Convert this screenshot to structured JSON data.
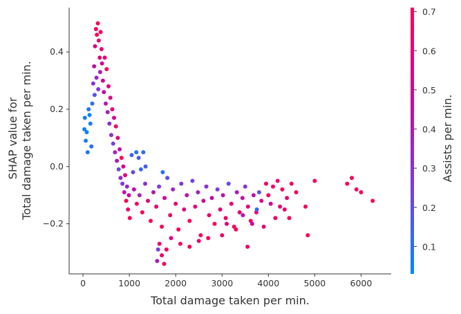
{
  "chart_data": {
    "type": "scatter",
    "xlabel": "Total damage taken per min.",
    "ylabel_line1": "SHAP value for",
    "ylabel_line2": "Total damage taken per min.",
    "colorbar_label": "Assists per min.",
    "xlim": [
      -300,
      6650
    ],
    "ylim": [
      -0.375,
      0.555
    ],
    "xticks": [
      0,
      1000,
      2000,
      3000,
      4000,
      5000,
      6000
    ],
    "yticks": [
      -0.2,
      0.0,
      0.2,
      0.4
    ],
    "xtick_labels": [
      "0",
      "1000",
      "2000",
      "3000",
      "4000",
      "5000",
      "6000"
    ],
    "ytick_labels": [
      "−0.2",
      "0.0",
      "0.2",
      "0.4"
    ],
    "color_scale": {
      "range": [
        0.03,
        0.71
      ],
      "ticks": [
        0.1,
        0.2,
        0.3,
        0.4,
        0.5,
        0.6,
        0.7
      ],
      "tick_labels": [
        "0.1",
        "0.2",
        "0.3",
        "0.4",
        "0.5",
        "0.6",
        "0.7"
      ],
      "colors": [
        "#008afb",
        "#7b3be2",
        "#c9079d",
        "#ff0052"
      ]
    },
    "points": [
      [
        40,
        0.17,
        0.08
      ],
      [
        80,
        0.12,
        0.05
      ],
      [
        120,
        0.2,
        0.1
      ],
      [
        160,
        0.15,
        0.06
      ],
      [
        60,
        0.09,
        0.07
      ],
      [
        200,
        0.22,
        0.12
      ],
      [
        100,
        0.05,
        0.09
      ],
      [
        140,
        0.18,
        0.04
      ],
      [
        30,
        0.13,
        0.06
      ],
      [
        180,
        0.07,
        0.11
      ],
      [
        220,
        0.29,
        0.3
      ],
      [
        240,
        0.35,
        0.45
      ],
      [
        260,
        0.42,
        0.55
      ],
      [
        280,
        0.48,
        0.65
      ],
      [
        300,
        0.46,
        0.7
      ],
      [
        320,
        0.5,
        0.68
      ],
      [
        340,
        0.44,
        0.62
      ],
      [
        360,
        0.38,
        0.58
      ],
      [
        380,
        0.47,
        0.66
      ],
      [
        400,
        0.41,
        0.6
      ],
      [
        250,
        0.25,
        0.2
      ],
      [
        290,
        0.31,
        0.35
      ],
      [
        330,
        0.27,
        0.28
      ],
      [
        370,
        0.33,
        0.4
      ],
      [
        410,
        0.36,
        0.5
      ],
      [
        430,
        0.3,
        0.55
      ],
      [
        450,
        0.26,
        0.48
      ],
      [
        470,
        0.38,
        0.64
      ],
      [
        490,
        0.22,
        0.42
      ],
      [
        510,
        0.34,
        0.69
      ],
      [
        530,
        0.19,
        0.38
      ],
      [
        550,
        0.28,
        0.6
      ],
      [
        570,
        0.15,
        0.33
      ],
      [
        590,
        0.24,
        0.56
      ],
      [
        610,
        0.11,
        0.3
      ],
      [
        630,
        0.2,
        0.62
      ],
      [
        650,
        0.08,
        0.25
      ],
      [
        670,
        0.17,
        0.52
      ],
      [
        690,
        0.05,
        0.36
      ],
      [
        710,
        0.14,
        0.66
      ],
      [
        730,
        0.02,
        0.4
      ],
      [
        750,
        0.1,
        0.58
      ],
      [
        770,
        -0.01,
        0.22
      ],
      [
        790,
        0.06,
        0.47
      ],
      [
        810,
        -0.04,
        0.35
      ],
      [
        830,
        0.03,
        0.69
      ],
      [
        850,
        -0.06,
        0.28
      ],
      [
        870,
        0.0,
        0.55
      ],
      [
        890,
        -0.09,
        0.44
      ],
      [
        910,
        -0.03,
        0.61
      ],
      [
        930,
        -0.12,
        0.68
      ],
      [
        950,
        -0.07,
        0.32
      ],
      [
        970,
        -0.15,
        0.63
      ],
      [
        990,
        -0.1,
        0.5
      ],
      [
        1010,
        -0.18,
        0.7
      ],
      [
        1050,
        0.04,
        0.15
      ],
      [
        1150,
        0.05,
        0.1
      ],
      [
        1080,
        -0.02,
        0.22
      ],
      [
        1200,
        0.03,
        0.18
      ],
      [
        1250,
        -0.01,
        0.12
      ],
      [
        1100,
        -0.08,
        0.45
      ],
      [
        1160,
        -0.13,
        0.66
      ],
      [
        1220,
        -0.1,
        0.38
      ],
      [
        1280,
        -0.16,
        0.7
      ],
      [
        1340,
        -0.06,
        0.3
      ],
      [
        1400,
        -0.12,
        0.58
      ],
      [
        1460,
        -0.19,
        0.67
      ],
      [
        1520,
        -0.09,
        0.41
      ],
      [
        1580,
        -0.14,
        0.63
      ],
      [
        1640,
        -0.07,
        0.26
      ],
      [
        1700,
        -0.21,
        0.69
      ],
      [
        1760,
        -0.11,
        0.52
      ],
      [
        1820,
        -0.04,
        0.2
      ],
      [
        1880,
        -0.17,
        0.66
      ],
      [
        1940,
        -0.08,
        0.34
      ],
      [
        2000,
        -0.13,
        0.6
      ],
      [
        2060,
        -0.22,
        0.68
      ],
      [
        2120,
        -0.06,
        0.28
      ],
      [
        2180,
        -0.15,
        0.55
      ],
      [
        2240,
        -0.1,
        0.42
      ],
      [
        2300,
        -0.19,
        0.7
      ],
      [
        2360,
        -0.05,
        0.24
      ],
      [
        2420,
        -0.14,
        0.62
      ],
      [
        2480,
        -0.09,
        0.37
      ],
      [
        2540,
        -0.24,
        0.67
      ],
      [
        2600,
        -0.12,
        0.5
      ],
      [
        2660,
        -0.07,
        0.31
      ],
      [
        2720,
        -0.17,
        0.64
      ],
      [
        2780,
        -0.11,
        0.46
      ],
      [
        2840,
        -0.2,
        0.69
      ],
      [
        2900,
        -0.08,
        0.27
      ],
      [
        2960,
        -0.15,
        0.58
      ],
      [
        3020,
        -0.1,
        0.43
      ],
      [
        3080,
        -0.18,
        0.66
      ],
      [
        3140,
        -0.06,
        0.22
      ],
      [
        3200,
        -0.13,
        0.61
      ],
      [
        3260,
        -0.21,
        0.68
      ],
      [
        3320,
        -0.09,
        0.39
      ],
      [
        3380,
        -0.16,
        0.63
      ],
      [
        3440,
        -0.11,
        0.47
      ],
      [
        3500,
        -0.07,
        0.3
      ],
      [
        3560,
        -0.14,
        0.59
      ],
      [
        3620,
        -0.19,
        0.7
      ],
      [
        3680,
        -0.1,
        0.44
      ],
      [
        3740,
        -0.16,
        0.66
      ],
      [
        1650,
        -0.27,
        0.65
      ],
      [
        1700,
        -0.31,
        0.62
      ],
      [
        1750,
        -0.34,
        0.68
      ],
      [
        1800,
        -0.29,
        0.7
      ],
      [
        1600,
        -0.33,
        0.4
      ],
      [
        1620,
        -0.29,
        0.25
      ],
      [
        1900,
        -0.25,
        0.58
      ],
      [
        2100,
        -0.27,
        0.66
      ],
      [
        2300,
        -0.28,
        0.69
      ],
      [
        2500,
        -0.26,
        0.6
      ],
      [
        2700,
        -0.25,
        0.68
      ],
      [
        3000,
        -0.24,
        0.63
      ],
      [
        3300,
        -0.22,
        0.7
      ],
      [
        3550,
        -0.28,
        0.66
      ],
      [
        3900,
        -0.21,
        0.62
      ],
      [
        1300,
        0.05,
        0.12
      ],
      [
        1350,
        0.0,
        0.16
      ],
      [
        1720,
        -0.02,
        0.1
      ],
      [
        3750,
        -0.15,
        0.12
      ],
      [
        3800,
        -0.09,
        0.2
      ],
      [
        3850,
        -0.12,
        0.55
      ],
      [
        3950,
        -0.06,
        0.64
      ],
      [
        4000,
        -0.1,
        0.68
      ],
      [
        4050,
        -0.13,
        0.5
      ],
      [
        4100,
        -0.07,
        0.66
      ],
      [
        4200,
        -0.05,
        0.62
      ],
      [
        4300,
        -0.08,
        0.7
      ],
      [
        4400,
        -0.11,
        0.6
      ],
      [
        4500,
        -0.06,
        0.66
      ],
      [
        4600,
        -0.09,
        0.68
      ],
      [
        4350,
        -0.15,
        0.63
      ],
      [
        4450,
        -0.18,
        0.67
      ],
      [
        4800,
        -0.14,
        0.69
      ],
      [
        5000,
        -0.05,
        0.65
      ],
      [
        4850,
        -0.24,
        0.68
      ],
      [
        5700,
        -0.06,
        0.7
      ],
      [
        5800,
        -0.04,
        0.69
      ],
      [
        5900,
        -0.08,
        0.66
      ],
      [
        6000,
        -0.09,
        0.68
      ],
      [
        6250,
        -0.12,
        0.67
      ],
      [
        4150,
        -0.18,
        0.64
      ],
      [
        4250,
        -0.14,
        0.58
      ],
      [
        3650,
        -0.2,
        0.48
      ],
      [
        3450,
        -0.17,
        0.42
      ],
      [
        3100,
        -0.2,
        0.56
      ]
    ]
  }
}
